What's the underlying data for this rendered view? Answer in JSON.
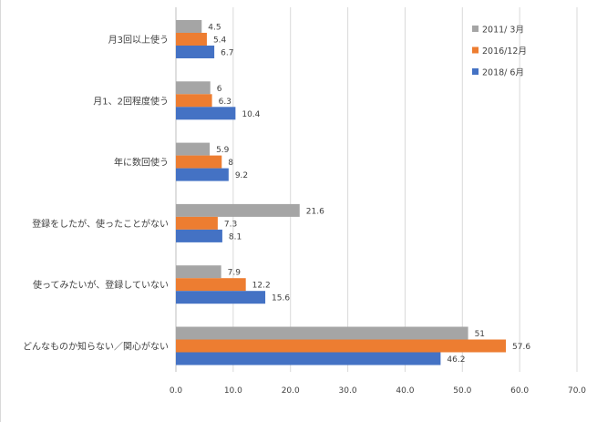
{
  "chart_data": {
    "type": "bar",
    "orientation": "horizontal",
    "categories": [
      "月3回以上使う",
      "月1、2回程度使う",
      "年に数回使う",
      "登録をしたが、使ったことがない",
      "使ってみたいが、登録していない",
      "どんなものか知らない／関心がない"
    ],
    "series": [
      {
        "name": "2011/ 3月",
        "color": "#A5A5A5",
        "values": [
          4.5,
          6.0,
          5.9,
          21.6,
          7.9,
          51.0
        ]
      },
      {
        "name": "2016/12月",
        "color": "#ED7D31",
        "values": [
          5.4,
          6.3,
          8.0,
          7.3,
          12.2,
          57.6
        ]
      },
      {
        "name": "2018/ 6月",
        "color": "#4472C4",
        "values": [
          6.7,
          10.4,
          9.2,
          8.1,
          15.6,
          46.2
        ]
      }
    ],
    "xlim": [
      0,
      70
    ],
    "xticks": [
      "0.0",
      "10.0",
      "20.0",
      "30.0",
      "40.0",
      "50.0",
      "60.0",
      "70.0"
    ],
    "grid": true,
    "legend": "top-right",
    "data_labels": true
  }
}
